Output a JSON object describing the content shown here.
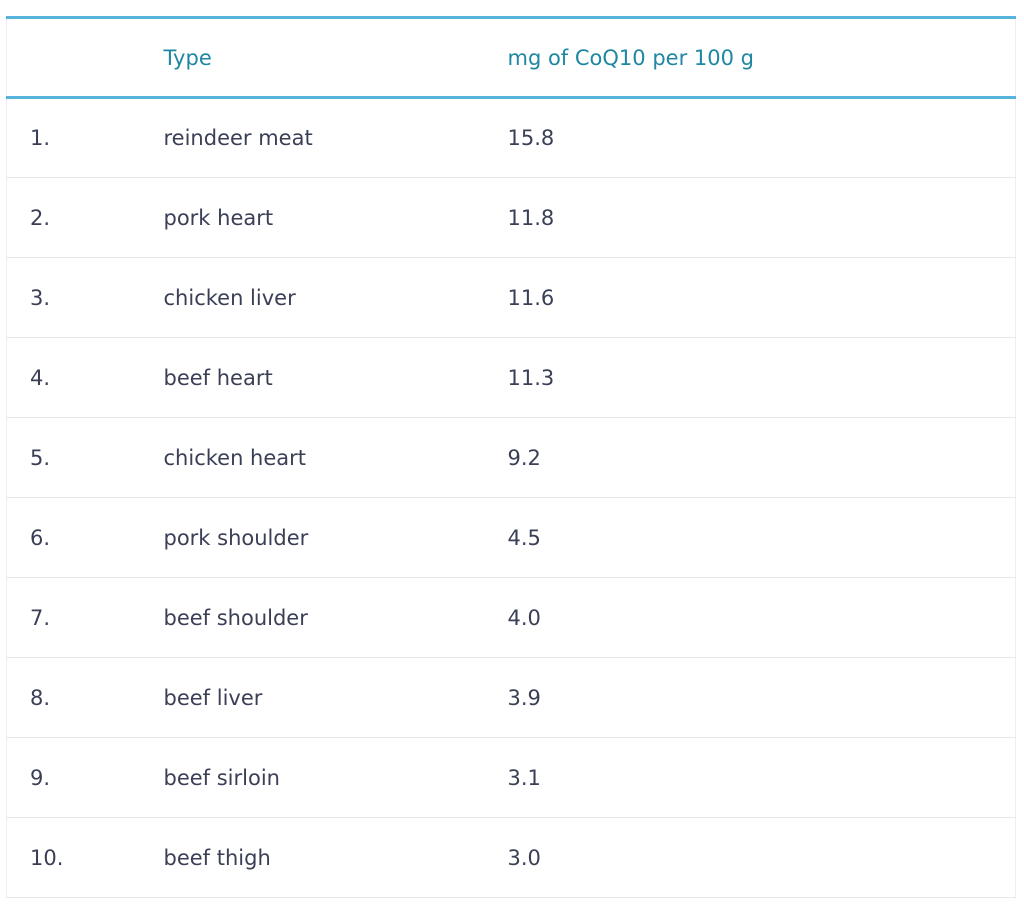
{
  "table": {
    "headers": {
      "rank": "",
      "type": "Type",
      "value": "mg of CoQ10 per 100 g"
    },
    "rows": [
      {
        "rank": "1.",
        "type": "reindeer meat",
        "value": "15.8"
      },
      {
        "rank": "2.",
        "type": "pork heart",
        "value": "11.8"
      },
      {
        "rank": "3.",
        "type": "chicken liver",
        "value": "11.6"
      },
      {
        "rank": "4.",
        "type": "beef heart",
        "value": "11.3"
      },
      {
        "rank": "5.",
        "type": "chicken heart",
        "value": "9.2"
      },
      {
        "rank": "6.",
        "type": "pork shoulder",
        "value": "4.5"
      },
      {
        "rank": "7.",
        "type": "beef shoulder",
        "value": "4.0"
      },
      {
        "rank": "8.",
        "type": "beef liver",
        "value": "3.9"
      },
      {
        "rank": "9.",
        "type": "beef sirloin",
        "value": "3.1"
      },
      {
        "rank": "10.",
        "type": "beef thigh",
        "value": "3.0"
      }
    ]
  },
  "colors": {
    "header_text": "#1f87a3",
    "header_rule": "#56b4dc",
    "body_text": "#3a3f56",
    "row_divider": "#e6e8ec"
  }
}
